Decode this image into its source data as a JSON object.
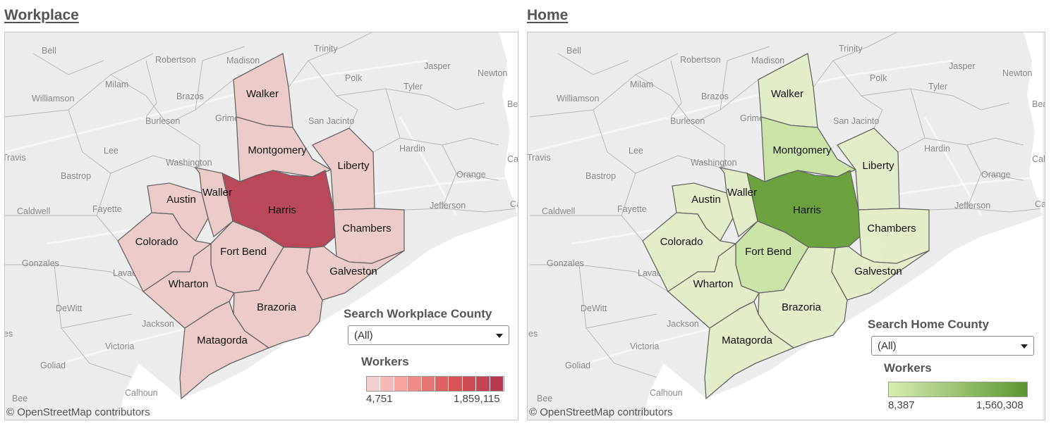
{
  "panels": [
    {
      "id": "workplace",
      "title": "Workplace",
      "search_label": "Search Workplace County",
      "search_value": "(All)",
      "legend_title": "Workers",
      "legend_min": "4,751",
      "legend_max": "1,859,115",
      "attribution": "© OpenStreetMap contributors",
      "colors": {
        "light": "#ecc8c8",
        "mid": "#e7a4a4",
        "dark": "#b5394e",
        "stroke": "#666666"
      },
      "legend_steps": [
        "#f4cfcf",
        "#f7b8b8",
        "#f7a2a0",
        "#f08b87",
        "#e87571",
        "#e0625f",
        "#d95454",
        "#cf4b55",
        "#c24354",
        "#b5394e"
      ]
    },
    {
      "id": "home",
      "title": "Home",
      "search_label": "Search Home County",
      "search_value": "(All)",
      "legend_title": "Workers",
      "legend_min": "8,387",
      "legend_max": "1,560,308",
      "attribution": "© OpenStreetMap contributors",
      "colors": {
        "light": "#e3edc5",
        "mid": "#c9e3a2",
        "dark": "#5f9a2f",
        "stroke": "#666666"
      },
      "legend_steps": [
        "#d8eeb0",
        "#5c9630"
      ]
    }
  ],
  "counties": {
    "Walker": {
      "wp": "light",
      "hm": "light"
    },
    "Montgomery": {
      "wp": "light",
      "hm": "mid"
    },
    "Liberty": {
      "wp": "light",
      "hm": "light"
    },
    "Harris": {
      "wp": "dark",
      "hm": "dark"
    },
    "Chambers": {
      "wp": "light",
      "hm": "light"
    },
    "Austin": {
      "wp": "light",
      "hm": "light"
    },
    "Waller": {
      "wp": "light",
      "hm": "light"
    },
    "Colorado": {
      "wp": "light",
      "hm": "light"
    },
    "Fort Bend": {
      "wp": "light",
      "hm": "mid"
    },
    "Wharton": {
      "wp": "light",
      "hm": "light"
    },
    "Brazoria": {
      "wp": "light",
      "hm": "light"
    },
    "Galveston": {
      "wp": "light",
      "hm": "light"
    },
    "Matagorda": {
      "wp": "light",
      "hm": "light"
    }
  },
  "background_labels": [
    "Bell",
    "Robertson",
    "Madison",
    "Trinity",
    "Jasper",
    "Newton",
    "Milam",
    "Polk",
    "Tyler",
    "Williamson",
    "Brazos",
    "Beau",
    "Burleson",
    "Grimes",
    "San Jacinto",
    "Hardin",
    "Lee",
    "Travis",
    "Washington",
    "Calc",
    "Bastrop",
    "Orange",
    "Caldwell",
    "Fayette",
    "Jefferson",
    "Ca",
    "Gonzales",
    "Lavaca",
    "DeWitt",
    "Jackson",
    "es",
    "Victoria",
    "Goliad",
    "Calhoun",
    "Bee"
  ]
}
